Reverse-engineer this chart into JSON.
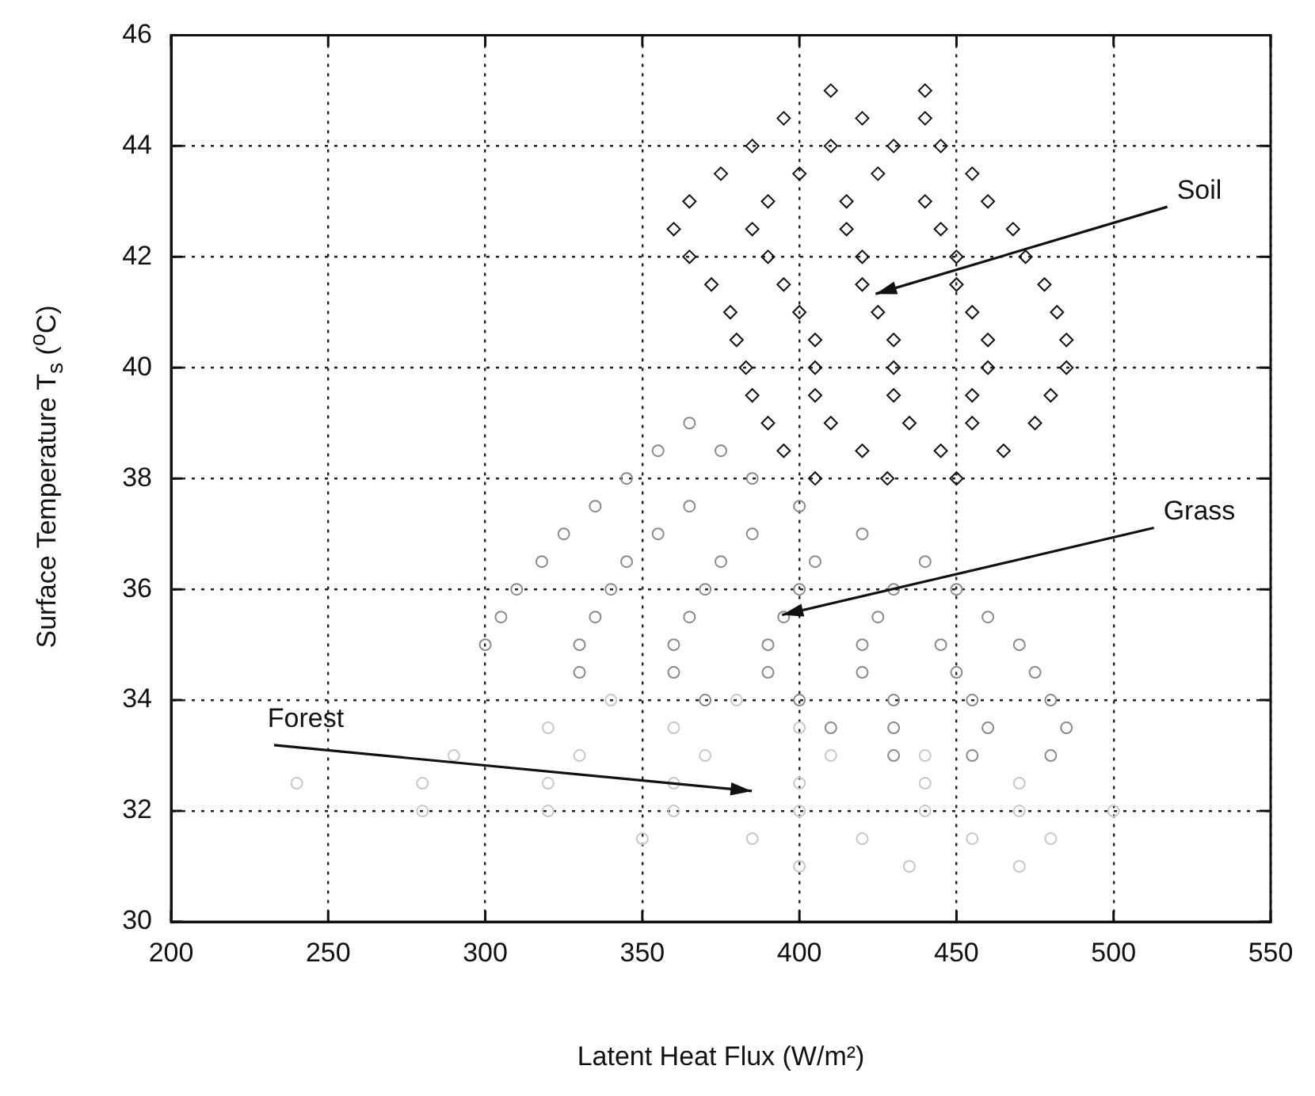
{
  "chart_data": {
    "type": "scatter",
    "xlabel": "Latent Heat Flux (W/m²)",
    "ylabel": "Surface Temperature T$_{s}$ ($^{o}$C)",
    "xlim": [
      200,
      550
    ],
    "xticks": [
      200,
      250,
      300,
      350,
      400,
      450,
      500,
      550
    ],
    "ylim": [
      30,
      46
    ],
    "yticks": [
      30,
      32,
      34,
      36,
      38,
      40,
      42,
      44,
      46
    ],
    "grid": true,
    "legend": false,
    "series": [
      {
        "name": "Forest",
        "color": "#c8c8c8",
        "marker": "circle",
        "x": [
          400,
          435,
          470,
          350,
          385,
          420,
          455,
          480,
          280,
          320,
          360,
          400,
          440,
          470,
          500,
          240,
          280,
          320,
          360,
          400,
          440,
          470,
          290,
          330,
          370,
          410,
          440,
          320,
          360,
          400,
          340,
          380
        ],
        "values": [
          31,
          31,
          31,
          31.5,
          31.5,
          31.5,
          31.5,
          31.5,
          32,
          32,
          32,
          32,
          32,
          32,
          32,
          32.5,
          32.5,
          32.5,
          32.5,
          32.5,
          32.5,
          32.5,
          33,
          33,
          33,
          33,
          33,
          33.5,
          33.5,
          33.5,
          34,
          34
        ]
      },
      {
        "name": "Grass",
        "color": "#8a8a8a",
        "marker": "circle",
        "x": [
          430,
          455,
          480,
          410,
          430,
          460,
          485,
          370,
          400,
          430,
          455,
          480,
          330,
          360,
          390,
          420,
          450,
          475,
          300,
          330,
          360,
          390,
          420,
          445,
          470,
          305,
          335,
          365,
          395,
          425,
          460,
          310,
          340,
          370,
          400,
          430,
          450,
          318,
          345,
          375,
          405,
          440,
          325,
          355,
          385,
          420,
          335,
          365,
          400,
          345,
          385,
          355,
          375,
          365
        ],
        "values": [
          33,
          33,
          33,
          33.5,
          33.5,
          33.5,
          33.5,
          34,
          34,
          34,
          34,
          34,
          34.5,
          34.5,
          34.5,
          34.5,
          34.5,
          34.5,
          35,
          35,
          35,
          35,
          35,
          35,
          35,
          35.5,
          35.5,
          35.5,
          35.5,
          35.5,
          35.5,
          36,
          36,
          36,
          36,
          36,
          36,
          36.5,
          36.5,
          36.5,
          36.5,
          36.5,
          37,
          37,
          37,
          37,
          37.5,
          37.5,
          37.5,
          38,
          38,
          38.5,
          38.5,
          39
        ]
      },
      {
        "name": "Soil",
        "color": "#111111",
        "marker": "diamond",
        "x": [
          405,
          428,
          450,
          395,
          420,
          445,
          465,
          390,
          410,
          435,
          455,
          475,
          385,
          405,
          430,
          455,
          480,
          383,
          405,
          430,
          460,
          485,
          380,
          405,
          430,
          460,
          485,
          378,
          400,
          425,
          455,
          482,
          372,
          395,
          420,
          450,
          478,
          365,
          390,
          420,
          450,
          472,
          360,
          385,
          415,
          445,
          468,
          365,
          390,
          415,
          440,
          460,
          375,
          400,
          425,
          455,
          385,
          410,
          430,
          445,
          395,
          420,
          440,
          410,
          440
        ],
        "values": [
          38,
          38,
          38,
          38.5,
          38.5,
          38.5,
          38.5,
          39,
          39,
          39,
          39,
          39,
          39.5,
          39.5,
          39.5,
          39.5,
          39.5,
          40,
          40,
          40,
          40,
          40,
          40.5,
          40.5,
          40.5,
          40.5,
          40.5,
          41,
          41,
          41,
          41,
          41,
          41.5,
          41.5,
          41.5,
          41.5,
          41.5,
          42,
          42,
          42,
          42,
          42,
          42.5,
          42.5,
          42.5,
          42.5,
          42.5,
          43,
          43,
          43,
          43,
          43,
          43.5,
          43.5,
          43.5,
          43.5,
          44,
          44,
          44,
          44,
          44.5,
          44.5,
          44.5,
          45,
          45
        ]
      }
    ]
  }
}
